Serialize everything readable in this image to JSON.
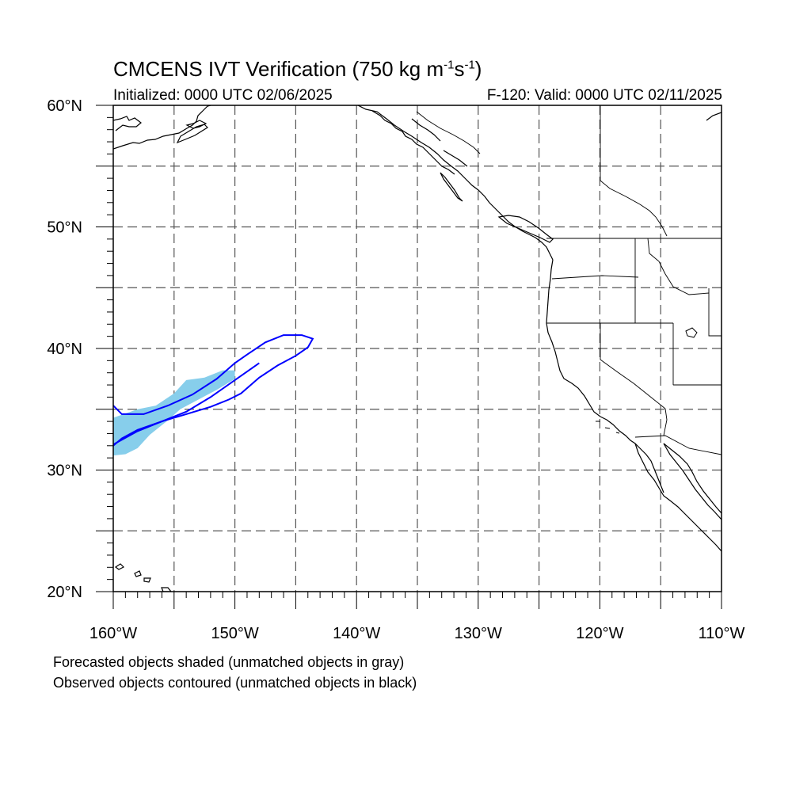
{
  "title": {
    "main_prefix": "CMCENS IVT Verification (750 kg m",
    "exp1": "-1",
    "mid": "s",
    "exp2": "-1",
    "suffix": ")"
  },
  "subtitle": {
    "initialized": "Initialized: 0000 UTC 02/06/2025",
    "valid": "F-120: Valid: 0000 UTC 02/11/2025"
  },
  "axes": {
    "lat_labels": [
      "60°N",
      "50°N",
      "40°N",
      "30°N",
      "20°N"
    ],
    "lon_labels": [
      "160°W",
      "150°W",
      "140°W",
      "130°W",
      "120°W",
      "110°W"
    ],
    "lat_range": [
      20,
      60
    ],
    "lon_range": [
      -160,
      -110
    ],
    "grid_spacing_deg": 5,
    "grid_style": "dashed"
  },
  "legend": {
    "line1": "Forecasted objects shaded (unmatched objects in gray)",
    "line2": "Observed objects contoured (unmatched objects in black)"
  },
  "colors": {
    "forecast_fill": "#87ceeb",
    "observed_contour": "#0000ff",
    "coastline": "#000000",
    "grid": "#555555"
  },
  "objects": {
    "forecast": [
      {
        "label": "forecast-object",
        "matched": true,
        "outline_lonlat": [
          [
            -160,
            34.3
          ],
          [
            -158,
            35.0
          ],
          [
            -156.5,
            35.3
          ],
          [
            -155,
            36.3
          ],
          [
            -154,
            37.4
          ],
          [
            -152.5,
            37.6
          ],
          [
            -151,
            38.2
          ],
          [
            -150,
            38.2
          ],
          [
            -150,
            37.5
          ],
          [
            -151.5,
            36.6
          ],
          [
            -153,
            35.8
          ],
          [
            -154.5,
            35.0
          ],
          [
            -155.5,
            34.1
          ],
          [
            -157,
            32.9
          ],
          [
            -158,
            31.8
          ],
          [
            -159,
            31.3
          ],
          [
            -160,
            31.2
          ]
        ]
      }
    ],
    "observed": [
      {
        "label": "observed-object",
        "matched": true,
        "outline_lonlat": [
          [
            -160,
            35.3
          ],
          [
            -159.3,
            34.6
          ],
          [
            -157.5,
            34.6
          ],
          [
            -155.5,
            35.3
          ],
          [
            -153.5,
            36.2
          ],
          [
            -151.5,
            37.5
          ],
          [
            -150,
            38.8
          ],
          [
            -149,
            39.5
          ],
          [
            -147.5,
            40.5
          ],
          [
            -146,
            41.1
          ],
          [
            -144.5,
            41.1
          ],
          [
            -143.6,
            40.8
          ],
          [
            -144,
            40.1
          ],
          [
            -145,
            39.4
          ],
          [
            -146.5,
            38.6
          ],
          [
            -148,
            37.6
          ],
          [
            -149.5,
            36.3
          ],
          [
            -150.5,
            35.8
          ],
          [
            -152,
            35.2
          ],
          [
            -154,
            34.6
          ],
          [
            -156,
            34.0
          ],
          [
            -158,
            33.3
          ],
          [
            -159.3,
            32.6
          ],
          [
            -160,
            32.0
          ]
        ],
        "axis_lonlat": [
          [
            -160,
            32.1
          ],
          [
            -158,
            33.2
          ],
          [
            -156,
            34.0
          ],
          [
            -154,
            34.8
          ],
          [
            -152,
            36.0
          ],
          [
            -150,
            37.4
          ],
          [
            -148,
            38.8
          ]
        ]
      }
    ]
  }
}
